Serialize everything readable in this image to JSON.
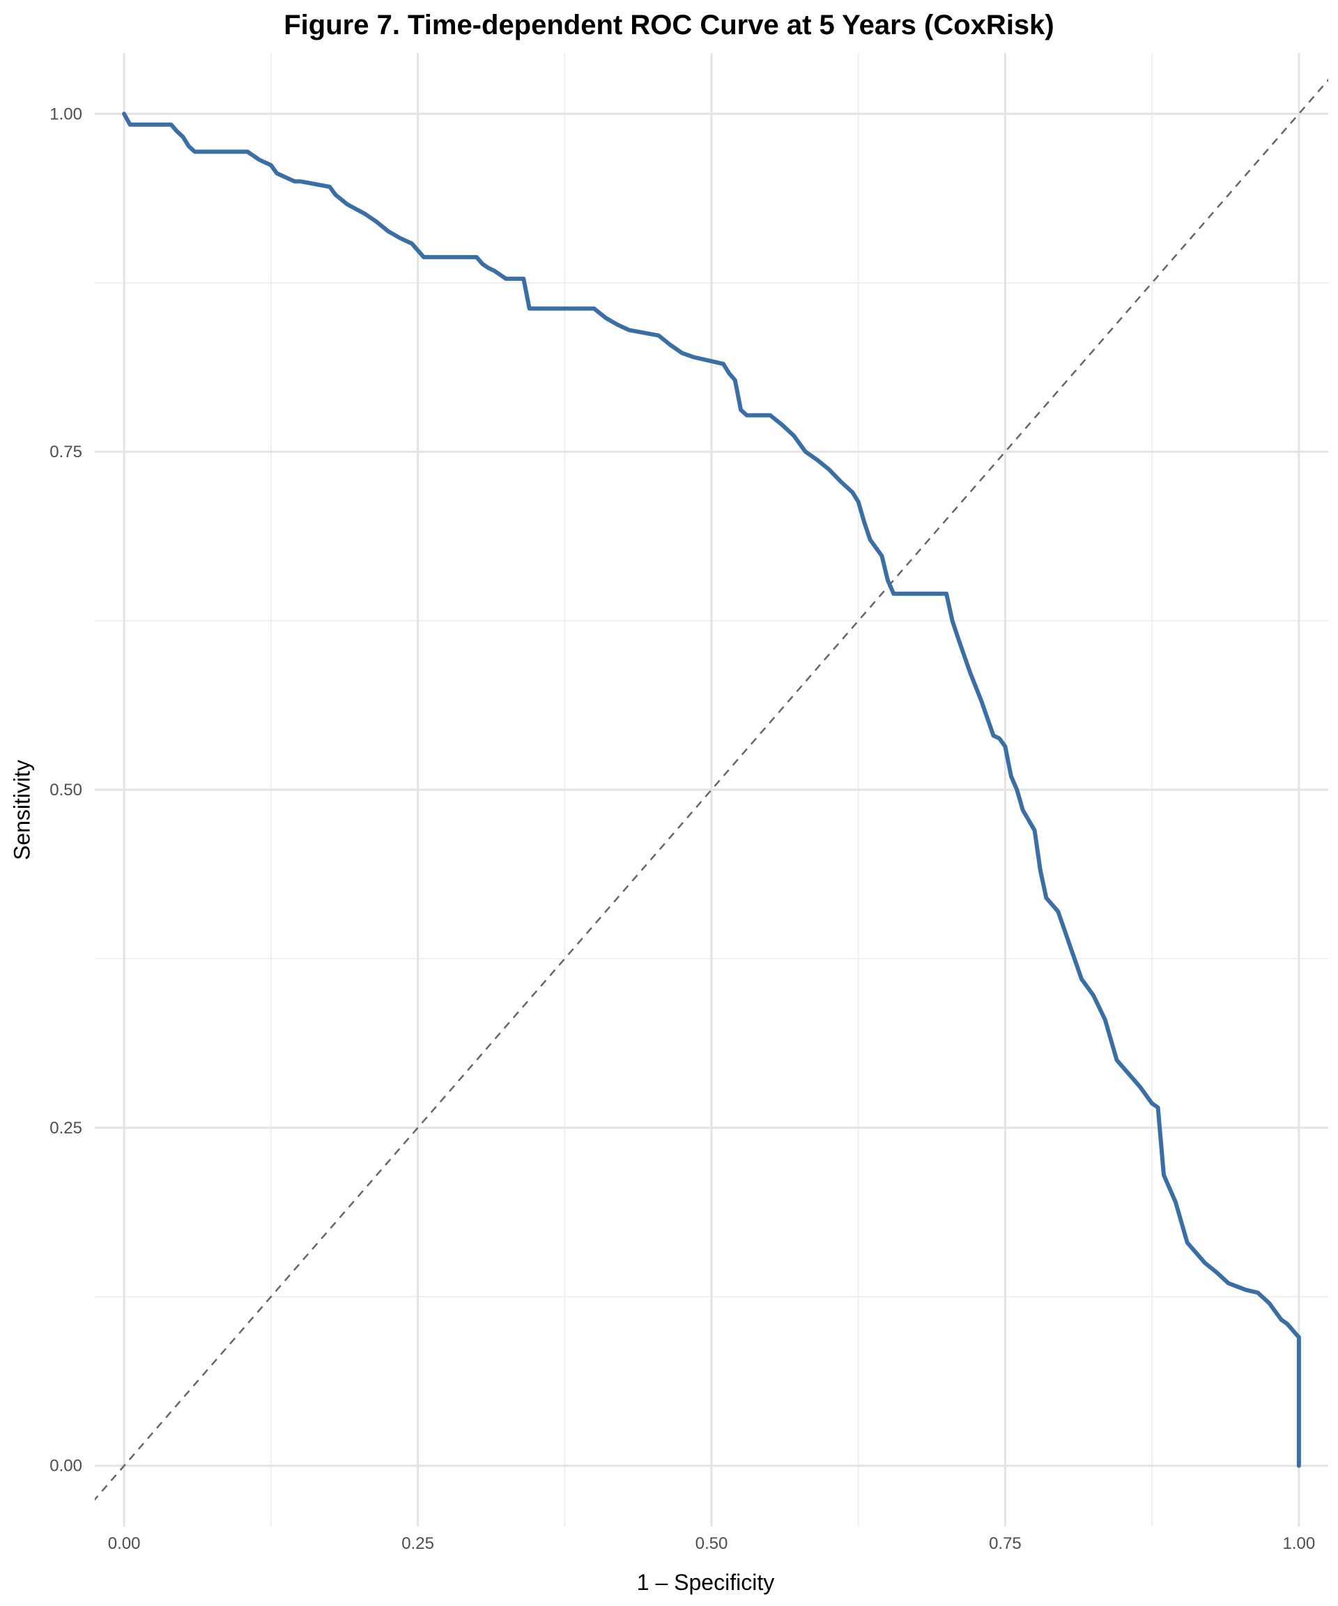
{
  "chart_data": {
    "type": "line",
    "title": "Figure 7. Time-dependent ROC Curve at 5 Years (CoxRisk)",
    "xlabel": "1 – Specificity",
    "ylabel": "Sensitivity",
    "xlim": [
      -0.025,
      1.025
    ],
    "ylim": [
      -0.045,
      1.045
    ],
    "x_ticks": [
      0.0,
      0.25,
      0.5,
      0.75,
      1.0
    ],
    "x_tick_labels": [
      "0.00",
      "0.25",
      "0.50",
      "0.75",
      "1.00"
    ],
    "y_ticks": [
      0.0,
      0.25,
      0.5,
      0.75,
      1.0
    ],
    "y_tick_labels": [
      "0.00",
      "0.25",
      "0.50",
      "0.75",
      "1.00"
    ],
    "grid": true,
    "reference_line": {
      "x": [
        -0.05,
        1.05
      ],
      "y": [
        -0.05,
        1.05
      ],
      "style": "dashed",
      "color": "#666666"
    },
    "series": [
      {
        "color": "#3a6ea5",
        "x": [
          0.0,
          0.005,
          0.01,
          0.04,
          0.045,
          0.05,
          0.055,
          0.06,
          0.105,
          0.11,
          0.115,
          0.125,
          0.13,
          0.135,
          0.145,
          0.15,
          0.175,
          0.18,
          0.19,
          0.205,
          0.215,
          0.225,
          0.235,
          0.245,
          0.255,
          0.3,
          0.305,
          0.31,
          0.315,
          0.325,
          0.34,
          0.345,
          0.35,
          0.4,
          0.41,
          0.42,
          0.43,
          0.455,
          0.465,
          0.475,
          0.485,
          0.51,
          0.515,
          0.52,
          0.525,
          0.53,
          0.55,
          0.56,
          0.57,
          0.58,
          0.59,
          0.6,
          0.61,
          0.62,
          0.625,
          0.63,
          0.635,
          0.645,
          0.65,
          0.655,
          0.7,
          0.705,
          0.71,
          0.72,
          0.73,
          0.74,
          0.745,
          0.75,
          0.755,
          0.76,
          0.765,
          0.775,
          0.78,
          0.785,
          0.795,
          0.805,
          0.815,
          0.825,
          0.835,
          0.845,
          0.86,
          0.865,
          0.875,
          0.88,
          0.885,
          0.895,
          0.9,
          0.905,
          0.915,
          0.92,
          0.93,
          0.94,
          0.955,
          0.965,
          0.97,
          0.975,
          0.985,
          0.99,
          0.995,
          1.0,
          1.0
        ],
        "y": [
          1.0,
          0.992,
          0.992,
          0.992,
          0.987,
          0.983,
          0.976,
          0.972,
          0.972,
          0.969,
          0.966,
          0.962,
          0.956,
          0.954,
          0.95,
          0.95,
          0.946,
          0.94,
          0.933,
          0.926,
          0.92,
          0.913,
          0.908,
          0.904,
          0.894,
          0.894,
          0.889,
          0.886,
          0.884,
          0.878,
          0.878,
          0.856,
          0.856,
          0.856,
          0.849,
          0.844,
          0.84,
          0.836,
          0.829,
          0.823,
          0.82,
          0.815,
          0.808,
          0.803,
          0.781,
          0.777,
          0.777,
          0.77,
          0.762,
          0.75,
          0.744,
          0.737,
          0.728,
          0.72,
          0.713,
          0.698,
          0.685,
          0.673,
          0.655,
          0.645,
          0.645,
          0.625,
          0.612,
          0.587,
          0.565,
          0.54,
          0.538,
          0.532,
          0.51,
          0.5,
          0.485,
          0.47,
          0.44,
          0.42,
          0.41,
          0.385,
          0.36,
          0.348,
          0.33,
          0.3,
          0.285,
          0.28,
          0.268,
          0.265,
          0.215,
          0.195,
          0.18,
          0.165,
          0.155,
          0.15,
          0.143,
          0.135,
          0.13,
          0.128,
          0.124,
          0.12,
          0.108,
          0.105,
          0.1,
          0.095,
          0.0
        ]
      }
    ]
  }
}
